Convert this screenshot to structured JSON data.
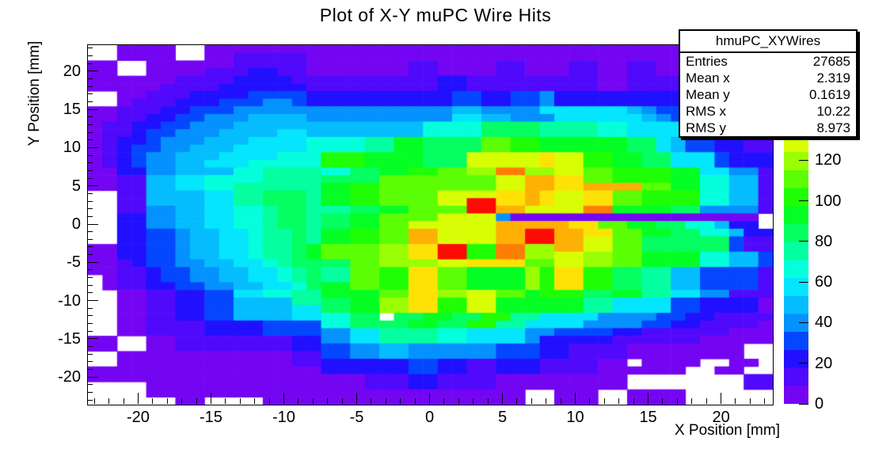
{
  "title": "Plot of X-Y muPC Wire Hits",
  "stats_box": {
    "title": "hmuPC_XYWires",
    "rows": [
      {
        "label": "Entries",
        "value": "27685"
      },
      {
        "label": "Mean x",
        "value": "2.319"
      },
      {
        "label": "Mean y",
        "value": "0.1619"
      },
      {
        "label": "RMS x",
        "value": "10.22"
      },
      {
        "label": "RMS y",
        "value": "8.973"
      }
    ]
  },
  "chart_data": {
    "type": "heatmap",
    "title": "Plot of X-Y muPC Wire Hits",
    "xlabel": "X Position [mm]",
    "ylabel": "Y Position [mm]",
    "xlim": [
      -23.5,
      23.5
    ],
    "ylim": [
      -23.5,
      23.5
    ],
    "zlim": [
      0,
      177
    ],
    "x_ticks": [
      -20,
      -15,
      -10,
      -5,
      0,
      5,
      10,
      15,
      20
    ],
    "y_ticks": [
      -20,
      -15,
      -10,
      -5,
      0,
      5,
      10,
      15,
      20
    ],
    "z_ticks": [
      0,
      20,
      40,
      60,
      80,
      100,
      120
    ],
    "minor_tick_step": 1,
    "n_bins_x": 47,
    "n_bins_y": 47,
    "legend_position": "colorbar-right",
    "palette": [
      "#7405F2",
      "#5109FB",
      "#2110FE",
      "#0547FE",
      "#0591FE",
      "#05BDFE",
      "#05E5FE",
      "#05FEDC",
      "#05FEA0",
      "#05FE62",
      "#05FE24",
      "#1FFE05",
      "#5CFE05",
      "#9AFE05",
      "#D8FE05",
      "#FEE205",
      "#FEB005",
      "#FE7D05",
      "#FE4205",
      "#FE0A05"
    ],
    "level_value_step": 8.85,
    "cell_encoding": "each char is one 1mm bin, left(x=-23.5) to right(x=23.5): '.'=empty(0), '0'-'9' and 'a'-'j' = color level 0-19, bin value = level*8.85+4.4 hits",
    "rows_top_to_bottom": [
      "..0000..000000000000000000000000000000000000000",
      "..0000..001111100000000000000000000000000000000",
      "00..0000001111100000001100001100011001100000000",
      "00..0000111221100000001100001100011001100000000",
      "00000011112222111111111122111111111001111111111",
      "00000111122222211111111122111111111001111111111",
      "..001112222333322222222223322334222222222222111",
      "..011122233344322222222223322334222222222222111",
      "00111223334444444444444445544446666665433222211",
      "00112233444555544444444446655444666666543322221 ",
      "01122334445555555555555777799998888776666553322",
      "01123344455556655555555777799998888776666553322",
      "012234445556666777788aa9999ccbbaaaaaa9965332211",
      "012334455566666777788aa9999ccbbaaaaaa9965332211",
      "0123445556666777bbbaaaa999eeeeefeebbaa996663222",
      "0123445566677777bbbaaaa999eeeeefeebbaa996663222",
      "00224455557788887799aabbccddhhddeeccbbbbaa66441",
      "00115566777788889999cccccccceeggffccbbbbaa77551",
      "0011556677888888aabbcccccccceeggffggggccaa77551",
      "..11555566889998aabbcccceeeeffgfeeffccbbbb77551",
      "..11555566889998aabbcccceejjffgfeeffccbbbb77551",
      "..114455667789988899aaccccjjggeeeehhaaaa9944441",
      "..2244556677899899aacccceeee400000000000000000-",
      "..2244556677899899aacceeeeeegggggffccaa9977522",
      "..22334556678898aabbccggeeeeggjjggffccaa9977522",
      "..22334556678898aabbccggeeeeggjjggeecc999999311",
      "002233455667889accccddffjjbbhhddggeecc999999311",
      "002233455667889accccddffjjbbhhddeeddccaaaa77553",
      "001233445566789999ccddddeeffffcceeddccaaaa77553",
      "001123344556678988ccbbffccaaaadbffbb99885533331",
      ".01123344556678988ccbbffccaaaadbffbb99885533331",
      ".011223344556679aaccbbffccaaaadbffbb99885533331",
      "..00112233667788aaaaccffddeeccabbb99aa886644111",
      "..0011223355558899aaddffbbeeaaaaaa8866663322220",
      "..0011223355556699aaddffbbeeaaaaaa8866663322220",
      "..001122335555667799 99aa99bb8866664444332211110",
      "..00111122223333779999aa99bb8866664444332211110",
      "..001111222233334466888877666644333322111111000",
      "00..0011111111224466888877666642222211111100000",
      "00..00111111112233445544444433322111100000000..",
      "..0000000000001133445544444433322111100000000..",
      "..00000000000011222222332211222111100 0000..00..",
      "00000000000000002222223322112221111000000..00..",
      "0000000000000000000111221111000000000........11",
      "....000000000000000111221111000000000........11",
      "....00000000000000000000000000..000..0000......",
      "......00....000000000000000000..000..0000......"
    ]
  }
}
